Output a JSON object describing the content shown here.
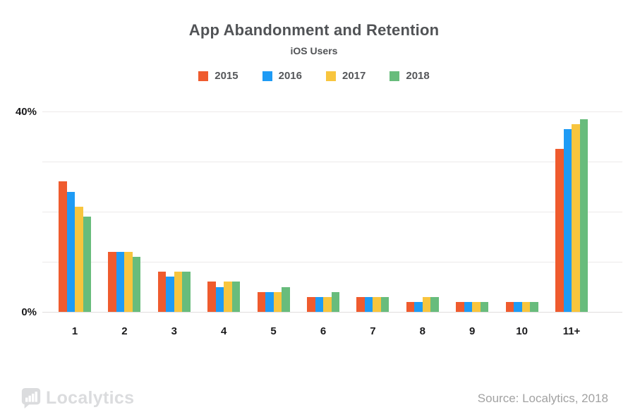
{
  "header": {
    "title": "App Abandonment and Retention",
    "subtitle": "iOS Users"
  },
  "chart_data": {
    "type": "bar",
    "title": "App Abandonment and Retention",
    "subtitle": "iOS Users",
    "categories": [
      "1",
      "2",
      "3",
      "4",
      "5",
      "6",
      "7",
      "8",
      "9",
      "10",
      "11+"
    ],
    "series": [
      {
        "name": "2015",
        "color": "#EF5B2E",
        "values": [
          26,
          12,
          8,
          6,
          4,
          3,
          3,
          2,
          2,
          2,
          32.5
        ]
      },
      {
        "name": "2016",
        "color": "#1E9BF5",
        "values": [
          24,
          12,
          7,
          5,
          4,
          3,
          3,
          2,
          2,
          2,
          36.5
        ]
      },
      {
        "name": "2017",
        "color": "#F8C53E",
        "values": [
          21,
          12,
          8,
          6,
          4,
          3,
          3,
          3,
          2,
          2,
          37.5
        ]
      },
      {
        "name": "2018",
        "color": "#68BC7C",
        "values": [
          19,
          11,
          8,
          6,
          5,
          4,
          3,
          3,
          2,
          2,
          38.5
        ]
      }
    ],
    "xlabel": "",
    "ylabel": "",
    "ylim": [
      0,
      40
    ],
    "grid": true,
    "gridlines_percent": [
      0,
      10,
      20,
      30,
      40
    ],
    "y_axis": {
      "top_label": "40%",
      "bottom_label": "0%"
    },
    "legend_position": "top"
  },
  "footer": {
    "logo_icon": "bar-chart-bubble-icon",
    "logo_text": "Localytics",
    "source": "Source: Localytics, 2018"
  }
}
